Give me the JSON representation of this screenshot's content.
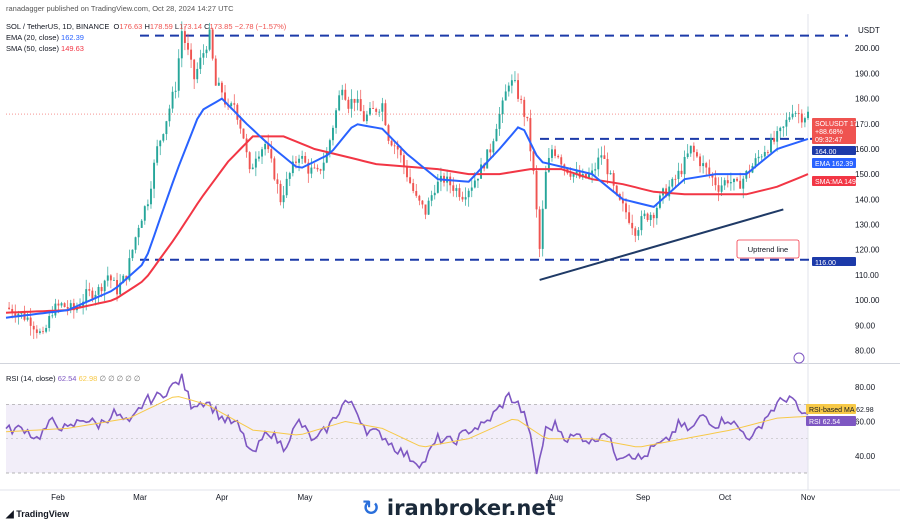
{
  "header": {
    "publisher": "ranadagger published on TradingView.com, Oct 28, 2024 14:27 UTC",
    "symbol_line": "SOL / TetherUS, 1D, BINANCE",
    "ohlc": {
      "o_label": "O",
      "o": "176.63",
      "h_label": "H",
      "h": "178.59",
      "l_label": "L",
      "l": "173.14",
      "c_label": "C",
      "c": "173.85",
      "change": "−2.78 (−1.57%)"
    },
    "ema_line": {
      "label": "EMA (20, close)",
      "value": "162.39"
    },
    "sma_line": {
      "label": "SMA (50, close)",
      "value": "149.63"
    },
    "rsi_line": {
      "label": "RSI (14, close)",
      "value": "62.54",
      "value2": "62.98",
      "zeros": "∅ ∅ ∅ ∅ ∅"
    }
  },
  "currency": "USDT",
  "branding": {
    "tradingview": "TradingView",
    "watermark": "iranbroker.net"
  },
  "annotation": {
    "uptrend_label": "Uptrend line"
  },
  "price_tags": {
    "symbol": "SOLUSDT",
    "price": "173.85",
    "change": "+88.68%",
    "countdown": "09:32:47",
    "level_164": "164.00",
    "ema_label": "EMA",
    "ema_value": "162.39",
    "sma_label": "SMA:MA",
    "sma_value": "149.63",
    "level_116": "116.00",
    "rsi_ma_label": "RSI-based MA",
    "rsi_ma_value": "62.98",
    "rsi_label": "RSI",
    "rsi_value": "62.54"
  },
  "colors": {
    "up": "#26a69a",
    "down": "#ef5350",
    "ema": "#2962ff",
    "sma": "#f23645",
    "rsi": "#7e57c2",
    "rsi_ma": "#f7c948",
    "dash": "#1c3aa9",
    "uptrend": "#1f3a66"
  },
  "chart_data": {
    "type": "candlestick",
    "price_axis": {
      "ticks": [
        "80.00",
        "90.00",
        "100.00",
        "110.00",
        "120.00",
        "130.00",
        "140.00",
        "150.00",
        "160.00",
        "170.00",
        "180.00",
        "190.00",
        "200.00"
      ],
      "range": [
        77,
        212
      ]
    },
    "rsi_axis": {
      "ticks": [
        "40.00",
        "60.00",
        "80.00"
      ],
      "range": [
        23,
        90
      ],
      "band": [
        30,
        70
      ]
    },
    "x_labels": [
      "Feb",
      "Mar",
      "Apr",
      "May",
      "Aug",
      "Sep",
      "Oct",
      "Nov"
    ],
    "horizontal_levels": [
      205,
      164,
      116
    ],
    "uptrend_line": {
      "from": [
        0,
        108
      ],
      "to": [
        0,
        136
      ]
    },
    "price_path": [
      [
        0,
        97
      ],
      [
        4,
        95
      ],
      [
        8,
        92
      ],
      [
        12,
        85
      ],
      [
        15,
        96
      ],
      [
        18,
        98
      ],
      [
        22,
        96
      ],
      [
        26,
        102
      ],
      [
        30,
        104
      ],
      [
        33,
        110
      ],
      [
        36,
        104
      ],
      [
        39,
        110
      ],
      [
        43,
        130
      ],
      [
        46,
        140
      ],
      [
        49,
        160
      ],
      [
        52,
        172
      ],
      [
        55,
        185
      ],
      [
        57,
        207
      ],
      [
        59,
        198
      ],
      [
        61,
        188
      ],
      [
        63,
        195
      ],
      [
        66,
        205
      ],
      [
        68,
        185
      ],
      [
        70,
        183
      ],
      [
        72,
        175
      ],
      [
        74,
        178
      ],
      [
        77,
        165
      ],
      [
        79,
        150
      ],
      [
        81,
        158
      ],
      [
        84,
        162
      ],
      [
        87,
        150
      ],
      [
        89,
        140
      ],
      [
        92,
        150
      ],
      [
        95,
        158
      ],
      [
        98,
        152
      ],
      [
        101,
        150
      ],
      [
        104,
        158
      ],
      [
        107,
        175
      ],
      [
        109,
        186
      ],
      [
        111,
        178
      ],
      [
        113,
        180
      ],
      [
        116,
        172
      ],
      [
        119,
        175
      ],
      [
        122,
        178
      ],
      [
        124,
        165
      ],
      [
        127,
        160
      ],
      [
        130,
        150
      ],
      [
        133,
        140
      ],
      [
        136,
        135
      ],
      [
        139,
        145
      ],
      [
        142,
        148
      ],
      [
        145,
        145
      ],
      [
        148,
        142
      ],
      [
        151,
        146
      ],
      [
        154,
        152
      ],
      [
        157,
        160
      ],
      [
        159,
        170
      ],
      [
        161,
        177
      ],
      [
        163,
        187
      ],
      [
        165,
        185
      ],
      [
        167,
        178
      ],
      [
        169,
        170
      ],
      [
        171,
        150
      ],
      [
        173,
        120
      ],
      [
        175,
        150
      ],
      [
        177,
        160
      ],
      [
        179,
        158
      ],
      [
        181,
        153
      ],
      [
        184,
        150
      ],
      [
        187,
        148
      ],
      [
        190,
        150
      ],
      [
        193,
        158
      ],
      [
        195,
        152
      ],
      [
        198,
        140
      ],
      [
        201,
        135
      ],
      [
        204,
        128
      ],
      [
        207,
        133
      ],
      [
        210,
        135
      ],
      [
        213,
        142
      ],
      [
        216,
        146
      ],
      [
        219,
        152
      ],
      [
        222,
        160
      ],
      [
        225,
        155
      ],
      [
        228,
        150
      ],
      [
        231,
        145
      ],
      [
        234,
        148
      ],
      [
        237,
        145
      ],
      [
        240,
        150
      ],
      [
        243,
        155
      ],
      [
        246,
        160
      ],
      [
        249,
        163
      ],
      [
        252,
        168
      ],
      [
        255,
        176
      ],
      [
        258,
        173
      ],
      [
        260,
        174
      ]
    ],
    "ema20_path": [
      [
        0,
        93
      ],
      [
        20,
        96
      ],
      [
        35,
        104
      ],
      [
        45,
        115
      ],
      [
        55,
        150
      ],
      [
        63,
        175
      ],
      [
        70,
        180
      ],
      [
        78,
        170
      ],
      [
        85,
        162
      ],
      [
        95,
        152
      ],
      [
        105,
        158
      ],
      [
        113,
        170
      ],
      [
        122,
        168
      ],
      [
        130,
        158
      ],
      [
        140,
        148
      ],
      [
        150,
        147
      ],
      [
        160,
        160
      ],
      [
        167,
        170
      ],
      [
        173,
        155
      ],
      [
        180,
        153
      ],
      [
        190,
        150
      ],
      [
        200,
        140
      ],
      [
        210,
        137
      ],
      [
        220,
        148
      ],
      [
        230,
        150
      ],
      [
        240,
        150
      ],
      [
        250,
        160
      ],
      [
        260,
        164
      ]
    ],
    "sma50_path": [
      [
        0,
        95
      ],
      [
        20,
        96
      ],
      [
        35,
        100
      ],
      [
        45,
        108
      ],
      [
        55,
        125
      ],
      [
        63,
        140
      ],
      [
        72,
        155
      ],
      [
        80,
        165
      ],
      [
        90,
        165
      ],
      [
        100,
        160
      ],
      [
        110,
        157
      ],
      [
        120,
        154
      ],
      [
        130,
        153
      ],
      [
        140,
        152
      ],
      [
        150,
        150
      ],
      [
        160,
        150
      ],
      [
        170,
        152
      ],
      [
        180,
        152
      ],
      [
        190,
        148
      ],
      [
        200,
        146
      ],
      [
        210,
        143
      ],
      [
        220,
        142
      ],
      [
        230,
        142
      ],
      [
        240,
        142
      ],
      [
        250,
        145
      ],
      [
        260,
        150
      ]
    ],
    "rsi_path": [
      [
        0,
        55
      ],
      [
        6,
        56
      ],
      [
        10,
        50
      ],
      [
        15,
        60
      ],
      [
        20,
        55
      ],
      [
        25,
        62
      ],
      [
        30,
        58
      ],
      [
        35,
        65
      ],
      [
        40,
        58
      ],
      [
        45,
        72
      ],
      [
        50,
        75
      ],
      [
        55,
        82
      ],
      [
        57,
        85
      ],
      [
        60,
        70
      ],
      [
        65,
        72
      ],
      [
        70,
        62
      ],
      [
        75,
        58
      ],
      [
        80,
        40
      ],
      [
        85,
        55
      ],
      [
        90,
        45
      ],
      [
        95,
        60
      ],
      [
        100,
        48
      ],
      [
        105,
        58
      ],
      [
        110,
        72
      ],
      [
        113,
        68
      ],
      [
        117,
        55
      ],
      [
        122,
        52
      ],
      [
        126,
        45
      ],
      [
        130,
        40
      ],
      [
        135,
        35
      ],
      [
        140,
        50
      ],
      [
        145,
        48
      ],
      [
        150,
        55
      ],
      [
        155,
        58
      ],
      [
        160,
        68
      ],
      [
        163,
        75
      ],
      [
        166,
        70
      ],
      [
        169,
        60
      ],
      [
        172,
        30
      ],
      [
        175,
        55
      ],
      [
        178,
        58
      ],
      [
        182,
        50
      ],
      [
        186,
        52
      ],
      [
        190,
        48
      ],
      [
        194,
        55
      ],
      [
        198,
        40
      ],
      [
        202,
        42
      ],
      [
        206,
        38
      ],
      [
        210,
        45
      ],
      [
        214,
        48
      ],
      [
        218,
        58
      ],
      [
        222,
        55
      ],
      [
        226,
        64
      ],
      [
        230,
        58
      ],
      [
        234,
        62
      ],
      [
        238,
        55
      ],
      [
        242,
        50
      ],
      [
        246,
        62
      ],
      [
        250,
        70
      ],
      [
        254,
        75
      ],
      [
        257,
        66
      ],
      [
        260,
        62.5
      ]
    ],
    "rsi_ma_path": [
      [
        0,
        54
      ],
      [
        20,
        56
      ],
      [
        40,
        62
      ],
      [
        55,
        75
      ],
      [
        65,
        70
      ],
      [
        80,
        55
      ],
      [
        95,
        52
      ],
      [
        110,
        60
      ],
      [
        122,
        56
      ],
      [
        135,
        45
      ],
      [
        150,
        50
      ],
      [
        165,
        62
      ],
      [
        175,
        50
      ],
      [
        190,
        50
      ],
      [
        205,
        45
      ],
      [
        220,
        50
      ],
      [
        235,
        55
      ],
      [
        250,
        62
      ],
      [
        260,
        63
      ]
    ]
  }
}
